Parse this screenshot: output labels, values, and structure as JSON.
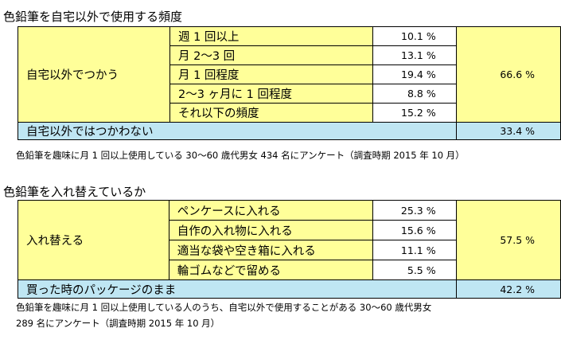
{
  "section1": {
    "title": "色鉛筆を自宅以外で使用する頻度",
    "category": "自宅以外でつかう",
    "rows": [
      {
        "label": "週 1 回以上",
        "pct": "10.1 %"
      },
      {
        "label": "月 2〜3 回",
        "pct": "13.1 %"
      },
      {
        "label": "月 1 回程度",
        "pct": "19.4 %"
      },
      {
        "label": "2〜3 ヶ月に 1 回程度",
        "pct": "8.8 %"
      },
      {
        "label": "それ以下の頻度",
        "pct": "15.2 %"
      }
    ],
    "total": "66.6 %",
    "negative": {
      "label": "自宅以外ではつかわない",
      "pct": "33.4 %"
    },
    "note": "色鉛筆を趣味に月 1 回以上使用している 30〜60 歳代男女  434 名にアンケート（調査時期 2015 年 10 月）"
  },
  "section2": {
    "title": "色鉛筆を入れ替えているか",
    "category": "入れ替える",
    "rows": [
      {
        "label": "ペンケースに入れる",
        "pct": "25.3 %"
      },
      {
        "label": "自作の入れ物に入れる",
        "pct": "15.6 %"
      },
      {
        "label": "適当な袋や空き箱に入れる",
        "pct": "11.1 %"
      },
      {
        "label": "輪ゴムなどで留める",
        "pct": "5.5 %"
      }
    ],
    "total": "57.5 %",
    "negative": {
      "label": "買った時のパッケージのまま",
      "pct": "42.2 %"
    },
    "note_line1": "色鉛筆を趣味に月 1 回以上使用している人のうち、自宅以外で使用することがある 30〜60 歳代男女",
    "note_line2": "289 名にアンケート（調査時期 2015 年 10 月）"
  }
}
